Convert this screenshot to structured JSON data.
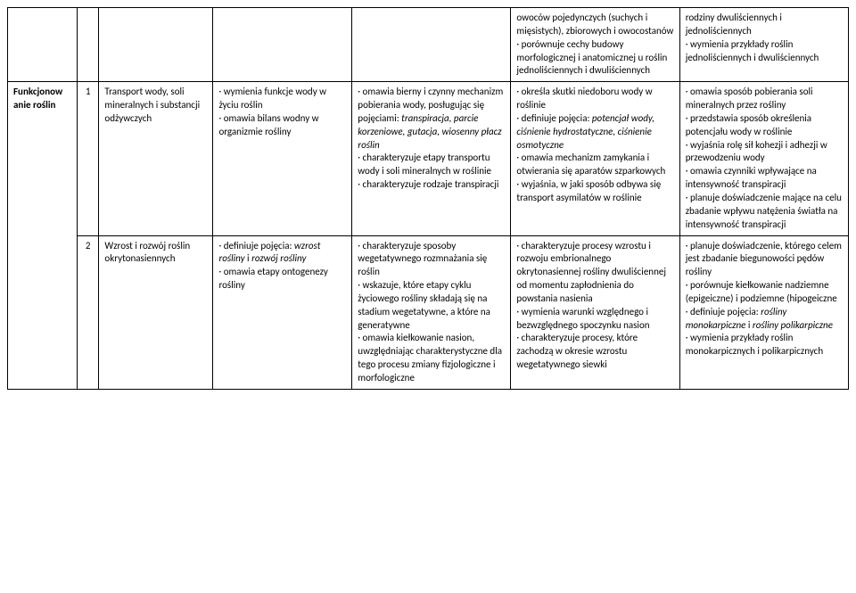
{
  "rows": [
    {
      "section": "",
      "num": "",
      "topic": "",
      "c3": "",
      "c4": "",
      "c5": "owoców pojedynczych (suchych i mięsistych), zbiorowych i owocostanów\n· porównuje cechy budowy morfologicznej i anatomicznej u roślin jednoliściennych i dwuliściennych",
      "c6": "rodziny dwuliściennych i jednoliściennych\n· wymienia przykłady roślin jednoliściennych i dwuliściennych"
    },
    {
      "section": "Funkcjonow\nanie roślin",
      "num": "1",
      "topic": "Transport wody, soli mineralnych i substancji odżywczych",
      "c3": "· wymienia funkcje wody w życiu roślin\n· omawia bilans wodny w organizmie rośliny",
      "c4": "· omawia bierny i czynny mechanizm pobierania wody, posługując się pojęciami: <i>transpiracja, parcie korzeniowe, gutacja, wiosenny płacz roślin</i>\n· charakteryzuje etapy transportu wody i soli mineralnych w roślinie\n· charakteryzuje rodzaje transpiracji",
      "c5": "· określa skutki niedoboru wody w roślinie\n· definiuje pojęcia: <i>potencjał wody, ciśnienie hydrostatyczne, ciśnienie osmotyczne</i>\n· omawia mechanizm zamykania i otwierania się aparatów szparkowych\n· wyjaśnia, w jaki sposób odbywa się transport asymilatów w roślinie",
      "c6": "· omawia sposób pobierania soli mineralnych przez rośliny\n· przedstawia sposób określenia potencjału wody w roślinie\n· wyjaśnia rolę sił kohezji i adhezji w przewodzeniu wody\n· omawia czynniki wpływające na intensywność transpiracji\n· planuje doświadczenie mające na celu zbadanie wpływu natężenia światła na intensywność transpiracji"
    },
    {
      "section": null,
      "num": "2",
      "topic": "Wzrost i rozwój roślin okrytonasiennych",
      "c3": "· definiuje pojęcia: <i>wzrost rośliny</i> i <i>rozwój rośliny</i>\n· omawia etapy ontogenezy rośliny",
      "c4": "· charakteryzuje sposoby wegetatywnego rozmnażania się roślin\n· wskazuje, które etapy cyklu życiowego rośliny składają się na stadium wegetatywne, a które na generatywne\n· omawia kiełkowanie nasion, uwzględniając charakterystyczne dla tego procesu zmiany fizjologiczne i morfologiczne",
      "c5": "· charakteryzuje procesy wzrostu i rozwoju embrionalnego okrytonasiennej rośliny dwuliściennej od momentu zapłodnienia do powstania nasienia\n· wymienia warunki względnego i bezwzględnego spoczynku nasion\n· charakteryzuje procesy, które zachodzą w okresie wzrostu wegetatywnego siewki",
      "c6": "· planuje doświadczenie, którego celem jest zbadanie biegunowości pędów rośliny\n· porównuje kiełkowanie nadziemne (epigeiczne) i podziemne (hipogeiczne\n· definiuje pojęcia: <i>rośliny monokarpiczne</i> i <i>rośliny polikarpiczne</i>\n· wymienia przykłady roślin monokarpicznych i polikarpicznych"
    }
  ]
}
